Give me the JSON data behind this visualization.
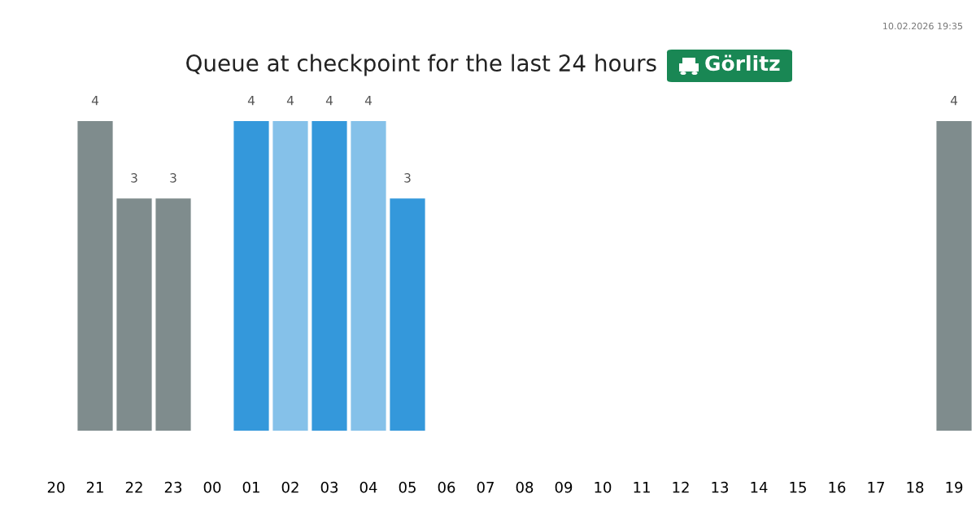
{
  "chart_data": {
    "type": "bar",
    "title": "Queue at checkpoint for the last 24 hours",
    "subtitle": "Görlitz",
    "categories": [
      "20",
      "21",
      "22",
      "23",
      "00",
      "01",
      "02",
      "03",
      "04",
      "05",
      "06",
      "07",
      "08",
      "09",
      "10",
      "11",
      "12",
      "13",
      "14",
      "15",
      "16",
      "17",
      "18",
      "19"
    ],
    "values": [
      null,
      4,
      3,
      3,
      null,
      4,
      4,
      4,
      4,
      3,
      null,
      null,
      null,
      null,
      null,
      null,
      null,
      null,
      null,
      null,
      null,
      null,
      null,
      4
    ],
    "colors": [
      "#7f8c8d",
      "#7f8c8d",
      "#7f8c8d",
      "#7f8c8d",
      "#7f8c8d",
      "#3498db",
      "#85c1e9",
      "#3498db",
      "#85c1e9",
      "#3498db",
      "#3498db",
      "#3498db",
      "#3498db",
      "#3498db",
      "#3498db",
      "#3498db",
      "#3498db",
      "#3498db",
      "#3498db",
      "#3498db",
      "#3498db",
      "#3498db",
      "#3498db",
      "#7f8c8d"
    ],
    "data_labels": true,
    "tick_labels": "x",
    "annotations": [
      "10.02.2026 19:35"
    ]
  }
}
